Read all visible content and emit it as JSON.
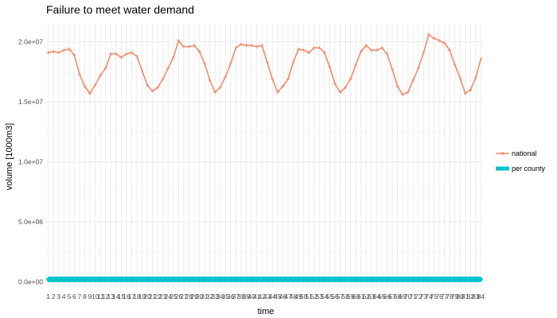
{
  "chart_data": {
    "type": "line",
    "title": "Failure to meet water demand",
    "xlabel": "time",
    "ylabel": "volume [1000m3]",
    "ylim": [
      -500000,
      21500000
    ],
    "xlim": [
      0.6,
      84.4
    ],
    "grid": true,
    "legend_position": "right",
    "yticks": [
      0,
      5000000,
      10000000,
      15000000,
      20000000
    ],
    "ytick_labels": [
      "0.0e+00",
      "5.0e+06",
      "1.0e+07",
      "1.5e+07",
      "2.0e+07"
    ],
    "x": [
      1,
      2,
      3,
      4,
      5,
      6,
      7,
      8,
      9,
      10,
      11,
      12,
      13,
      14,
      15,
      16,
      17,
      18,
      19,
      20,
      21,
      22,
      23,
      24,
      25,
      26,
      27,
      28,
      29,
      30,
      31,
      32,
      33,
      34,
      35,
      36,
      37,
      38,
      39,
      40,
      41,
      42,
      43,
      44,
      45,
      46,
      47,
      48,
      49,
      50,
      51,
      52,
      53,
      54,
      55,
      56,
      57,
      58,
      59,
      60,
      61,
      62,
      63,
      64,
      65,
      66,
      67,
      68,
      69,
      70,
      71,
      72,
      73,
      74,
      75,
      76,
      77,
      78,
      79,
      80,
      81,
      82,
      83,
      84
    ],
    "x_tick_labels": [
      "1",
      "2",
      "3",
      "4",
      "5",
      "6",
      "7",
      "8",
      "9",
      "10",
      "11",
      "12",
      "13",
      "14",
      "15",
      "16",
      "17",
      "18",
      "19",
      "20",
      "21",
      "22",
      "23",
      "24",
      "25",
      "26",
      "27",
      "28",
      "29",
      "30",
      "31",
      "32",
      "33",
      "34",
      "35",
      "36",
      "37",
      "38",
      "39",
      "40",
      "41",
      "42",
      "43",
      "44",
      "45",
      "46",
      "47",
      "48",
      "49",
      "50",
      "51",
      "52",
      "53",
      "54",
      "55",
      "56",
      "57",
      "58",
      "59",
      "60",
      "61",
      "62",
      "63",
      "64",
      "65",
      "66",
      "67",
      "68",
      "69",
      "70",
      "71",
      "72",
      "73",
      "74",
      "75",
      "76",
      "77",
      "78",
      "79",
      "80",
      "81",
      "82",
      "83",
      "84"
    ],
    "series": [
      {
        "name": "national",
        "color": "#f08c6c",
        "values": [
          19100000,
          19200000,
          19100000,
          19300000,
          19400000,
          18900000,
          17300000,
          16300000,
          15700000,
          16400000,
          17200000,
          17800000,
          19000000,
          19000000,
          18700000,
          19000000,
          19100000,
          18800000,
          17600000,
          16400000,
          15900000,
          16200000,
          16900000,
          17800000,
          18700000,
          20100000,
          19600000,
          19600000,
          19700000,
          19200000,
          18200000,
          16800000,
          15800000,
          16200000,
          17100000,
          18200000,
          19500000,
          19800000,
          19700000,
          19700000,
          19600000,
          19700000,
          18300000,
          16900000,
          15800000,
          16300000,
          16900000,
          18300000,
          19400000,
          19300000,
          19100000,
          19500000,
          19500000,
          19100000,
          17900000,
          16500000,
          15800000,
          16200000,
          16900000,
          18100000,
          19200000,
          19700000,
          19300000,
          19300000,
          19500000,
          19000000,
          17700000,
          16300000,
          15600000,
          15800000,
          16800000,
          17800000,
          19100000,
          20600000,
          20300000,
          20100000,
          19900000,
          19300000,
          18100000,
          17000000,
          15700000,
          16000000,
          17000000,
          18600000
        ]
      },
      {
        "name": "per county",
        "color": "#00c5cd",
        "values": [
          200000,
          200000,
          200000,
          200000,
          200000,
          200000,
          200000,
          200000,
          200000,
          200000,
          200000,
          200000,
          200000,
          200000,
          200000,
          200000,
          200000,
          200000,
          200000,
          200000,
          200000,
          200000,
          200000,
          200000,
          200000,
          200000,
          200000,
          200000,
          200000,
          200000,
          200000,
          200000,
          200000,
          200000,
          200000,
          200000,
          200000,
          200000,
          200000,
          200000,
          200000,
          200000,
          200000,
          200000,
          200000,
          200000,
          200000,
          200000,
          200000,
          200000,
          200000,
          200000,
          200000,
          200000,
          200000,
          200000,
          200000,
          200000,
          200000,
          200000,
          200000,
          200000,
          200000,
          200000,
          200000,
          200000,
          200000,
          200000,
          200000,
          200000,
          200000,
          200000,
          200000,
          200000,
          200000,
          200000,
          200000,
          200000,
          200000,
          200000,
          200000,
          200000,
          200000,
          200000
        ]
      }
    ]
  }
}
